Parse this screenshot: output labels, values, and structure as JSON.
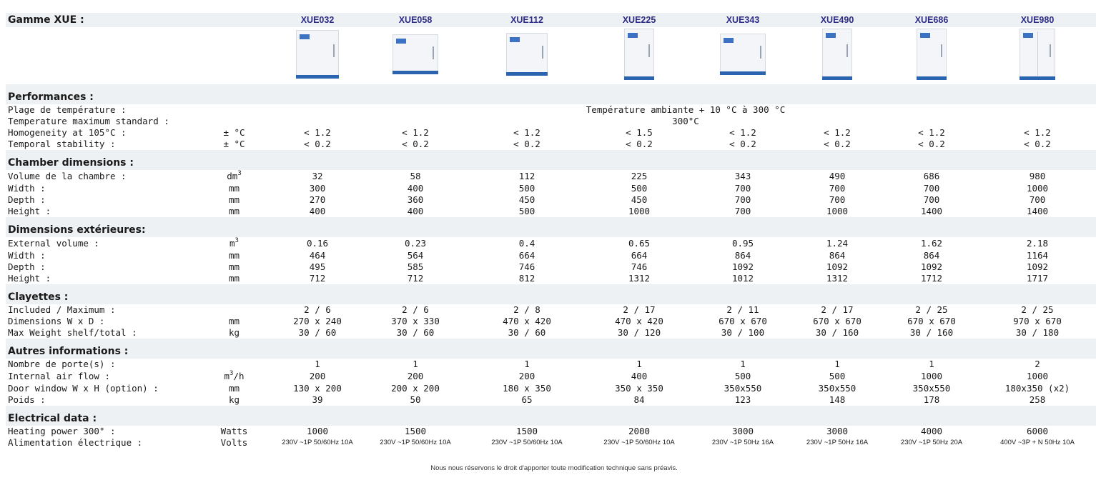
{
  "header": {
    "title": "Gamme XUE :"
  },
  "models": [
    "XUE032",
    "XUE058",
    "XUE112",
    "XUE225",
    "XUE343",
    "XUE490",
    "XUE686",
    "XUE980"
  ],
  "model_images": [
    "oven-icon",
    "oven-icon",
    "oven-icon",
    "oven-icon",
    "oven-icon",
    "oven-icon",
    "oven-icon",
    "oven-icon"
  ],
  "sections": {
    "performances": {
      "title": "Performances :",
      "rows": [
        {
          "label": "Plage de température :",
          "unit": "",
          "span": "Température ambiante + 10 °C à 300 °C"
        },
        {
          "label": "Temperature maximum standard :",
          "unit": "",
          "span": "300°C"
        },
        {
          "label": "Homogeneity at 105°C :",
          "unit": "± °C",
          "values": [
            "< 1.2",
            "< 1.2",
            "< 1.2",
            "< 1.5",
            "< 1.2",
            "< 1.2",
            "< 1.2",
            "< 1.2"
          ]
        },
        {
          "label": "Temporal stability :",
          "unit": "± °C",
          "values": [
            "< 0.2",
            "< 0.2",
            "< 0.2",
            "< 0.2",
            "< 0.2",
            "< 0.2",
            "< 0.2",
            "< 0.2"
          ]
        }
      ]
    },
    "chamber": {
      "title": "Chamber dimensions :",
      "rows": [
        {
          "label": "Volume de la chambre :",
          "unit": "dm",
          "unit_sup": "3",
          "values": [
            "32",
            "58",
            "112",
            "225",
            "343",
            "490",
            "686",
            "980"
          ]
        },
        {
          "label": "Width :",
          "unit": "mm",
          "values": [
            "300",
            "400",
            "500",
            "500",
            "700",
            "700",
            "700",
            "1000"
          ]
        },
        {
          "label": "Depth :",
          "unit": "mm",
          "values": [
            "270",
            "360",
            "450",
            "450",
            "700",
            "700",
            "700",
            "700"
          ]
        },
        {
          "label": "Height :",
          "unit": "mm",
          "values": [
            "400",
            "400",
            "500",
            "1000",
            "700",
            "1000",
            "1400",
            "1400"
          ]
        }
      ]
    },
    "exterior": {
      "title": "Dimensions extérieures:",
      "rows": [
        {
          "label": "External volume :",
          "unit": "m",
          "unit_sup": "3",
          "values": [
            "0.16",
            "0.23",
            "0.4",
            "0.65",
            "0.95",
            "1.24",
            "1.62",
            "2.18"
          ]
        },
        {
          "label": "Width :",
          "unit": "mm",
          "values": [
            "464",
            "564",
            "664",
            "664",
            "864",
            "864",
            "864",
            "1164"
          ]
        },
        {
          "label": "Depth :",
          "unit": "mm",
          "values": [
            "495",
            "585",
            "746",
            "746",
            "1092",
            "1092",
            "1092",
            "1092"
          ]
        },
        {
          "label": "Height :",
          "unit": "mm",
          "values": [
            "712",
            "712",
            "812",
            "1312",
            "1012",
            "1312",
            "1712",
            "1717"
          ]
        }
      ]
    },
    "shelves": {
      "title": "Clayettes :",
      "rows": [
        {
          "label": "Included / Maximum :",
          "unit": "",
          "values": [
            "2 / 6",
            "2 / 6",
            "2 / 8",
            "2 / 17",
            "2 / 11",
            "2 / 17",
            "2 / 25",
            "2 / 25"
          ]
        },
        {
          "label": "Dimensions W x D :",
          "unit": "mm",
          "values": [
            "270 x 240",
            "370 x 330",
            "470 x 420",
            "470 x 420",
            "670 x 670",
            "670 x 670",
            "670 x 670",
            "970 x 670"
          ]
        },
        {
          "label": "Max Weight shelf/total :",
          "unit": "kg",
          "values": [
            "30 / 60",
            "30 / 60",
            "30 / 60",
            "30 / 120",
            "30 / 100",
            "30 / 160",
            "30 / 160",
            "30 / 180"
          ]
        }
      ]
    },
    "other": {
      "title": "Autres informations :",
      "rows": [
        {
          "label": "Nombre de porte(s) :",
          "unit": "",
          "values": [
            "1",
            "1",
            "1",
            "1",
            "1",
            "1",
            "1",
            "2"
          ]
        },
        {
          "label": "Internal air flow :",
          "unit": "m",
          "unit_sup": "3",
          "unit_after": "/h",
          "values": [
            "200",
            "200",
            "200",
            "400",
            "500",
            "500",
            "1000",
            "1000"
          ]
        },
        {
          "label": "Door window W x H (option) :",
          "unit": "mm",
          "values": [
            "130 x 200",
            "200 x 200",
            "180 x 350",
            "350 x 350",
            "350x550",
            "350x550",
            "350x550",
            "180x350 (x2)"
          ]
        },
        {
          "label": "Poids :",
          "unit": "kg",
          "values": [
            "39",
            "50",
            "65",
            "84",
            "123",
            "148",
            "178",
            "258"
          ]
        }
      ]
    },
    "electrical": {
      "title": "Electrical data :",
      "rows": [
        {
          "label": "Heating power 300° :",
          "unit": "Watts",
          "values": [
            "1000",
            "1500",
            "1500",
            "2000",
            "3000",
            "3000",
            "4000",
            "6000"
          ]
        },
        {
          "label": "Alimentation électrique :",
          "unit": "Volts",
          "small": true,
          "values": [
            "230V ~1P 50/60Hz 10A",
            "230V ~1P 50/60Hz 10A",
            "230V ~1P 50/60Hz 10A",
            "230V ~1P 50/60Hz 10A",
            "230V ~1P 50Hz 16A",
            "230V ~1P 50Hz 16A",
            "230V ~1P 50Hz 20A",
            "400V ~3P + N 50Hz 10A"
          ]
        }
      ]
    }
  },
  "footer": {
    "note": "Nous nous réservons le droit d'apporter toute modification technique sans préavis."
  }
}
